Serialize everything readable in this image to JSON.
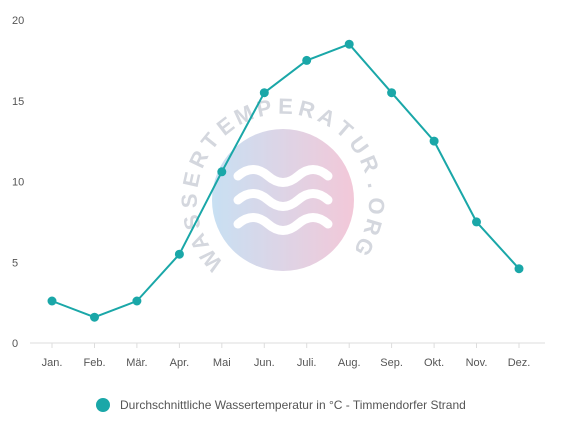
{
  "watermark": {
    "text": "WASSERTEMPERATUR.ORG",
    "gradient_start": "#b6d6ef",
    "gradient_end": "#efb6cc"
  },
  "chart_data": {
    "type": "line",
    "categories": [
      "Jan.",
      "Feb.",
      "Mär.",
      "Apr.",
      "Mai",
      "Jun.",
      "Juli.",
      "Aug.",
      "Sep.",
      "Okt.",
      "Nov.",
      "Dez."
    ],
    "series": [
      {
        "name": "Durchschnittliche Wassertemperatur in °C - Timmendorfer Strand",
        "values": [
          2.6,
          1.6,
          2.6,
          5.5,
          10.6,
          15.5,
          17.5,
          18.5,
          15.5,
          12.5,
          7.5,
          4.6
        ],
        "color": "#1aa7a8"
      }
    ],
    "yticks": [
      0,
      5,
      10,
      15,
      20
    ],
    "ylim": [
      0,
      20
    ],
    "title": "",
    "xlabel": "",
    "ylabel": "",
    "grid": false,
    "legend_position": "bottom"
  }
}
